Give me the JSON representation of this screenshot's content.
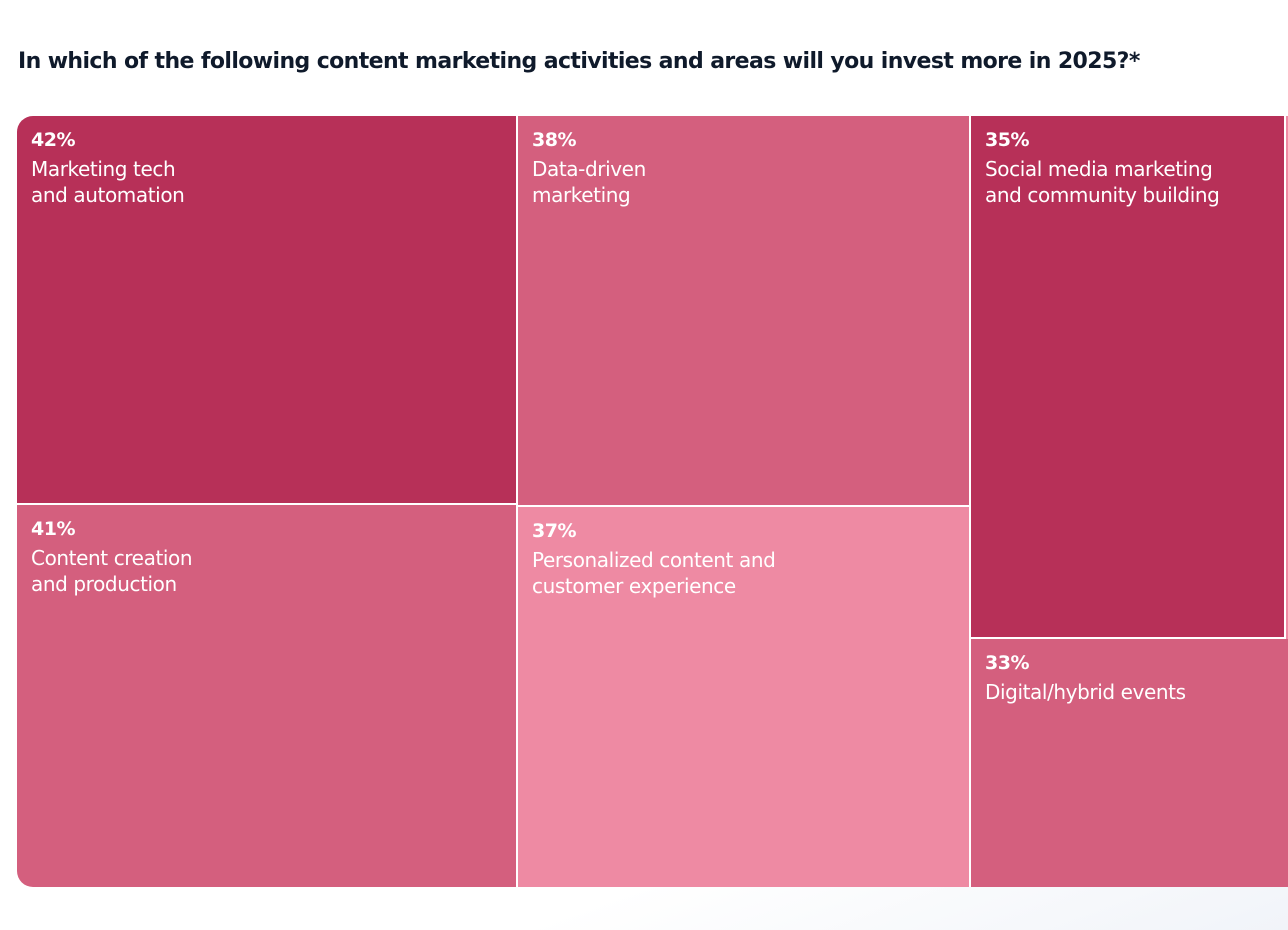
{
  "chart_data": {
    "type": "treemap",
    "title": "In which of the following content marketing activities and areas will you invest more in 2025?*",
    "unit": "%",
    "items": [
      {
        "value": 42,
        "value_label": "42%",
        "label": "Marketing tech\nand automation",
        "color": "#b73058"
      },
      {
        "value": 41,
        "value_label": "41%",
        "label": "Content creation\nand production",
        "color": "#d45f7e"
      },
      {
        "value": 38,
        "value_label": "38%",
        "label": "Data-driven\nmarketing",
        "color": "#d45f7e"
      },
      {
        "value": 37,
        "value_label": "37%",
        "label": "Personalized content and\ncustomer experience",
        "color": "#ee8aa3"
      },
      {
        "value": 35,
        "value_label": "35%",
        "label": "Social media marketing\nand community building",
        "color": "#b73058"
      },
      {
        "value": 33,
        "value_label": "33%",
        "label": "Digital/hybrid events",
        "color": "#d45f7e"
      }
    ],
    "partial_item_color": "#ee8aa3"
  }
}
